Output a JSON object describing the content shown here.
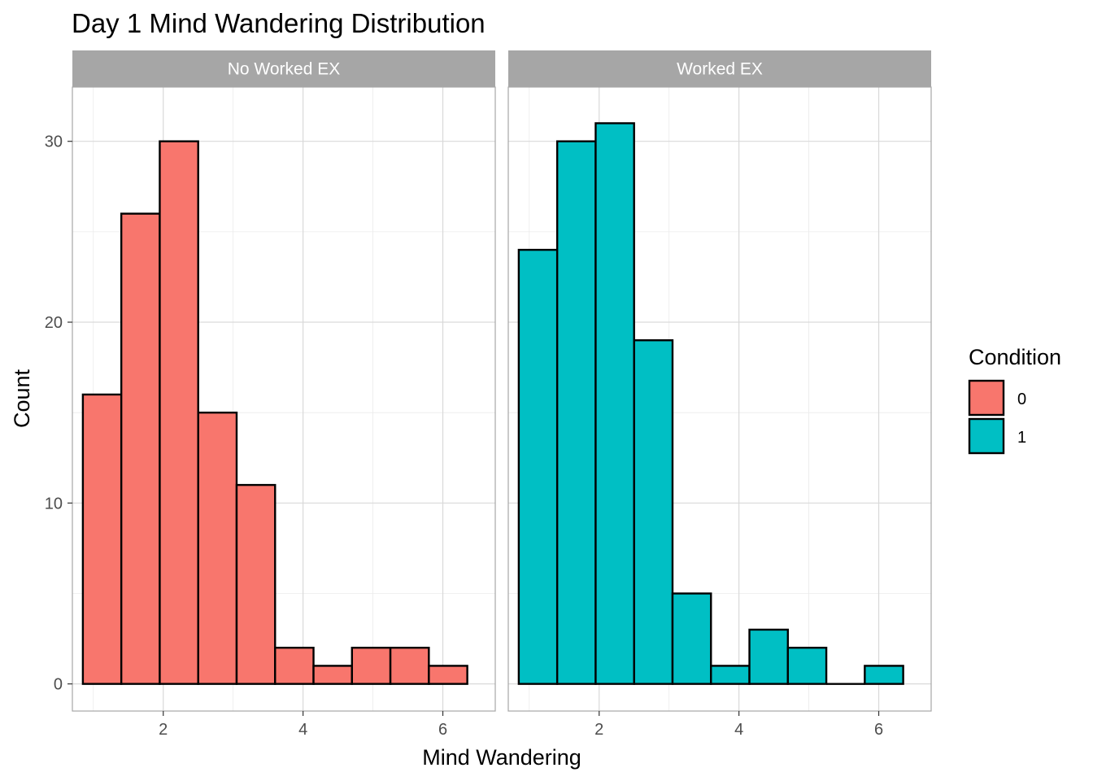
{
  "chart_data": {
    "type": "bar",
    "title": "Day 1 Mind Wandering Distribution",
    "xlabel": "Mind Wandering",
    "ylabel": "Count",
    "xlim": [
      0.7,
      6.75
    ],
    "ylim": [
      -1.5,
      33
    ],
    "x_ticks": [
      2,
      4,
      6
    ],
    "y_ticks": [
      0,
      10,
      20,
      30
    ],
    "grid": true,
    "bin_edges": [
      0.85,
      1.4,
      1.95,
      2.5,
      3.05,
      3.6,
      4.15,
      4.7,
      5.25,
      5.8,
      6.35
    ],
    "legend": {
      "title": "Condition",
      "position": "right",
      "entries": [
        {
          "label": "0",
          "color": "#F8766D"
        },
        {
          "label": "1",
          "color": "#00BFC4"
        }
      ]
    },
    "panels": [
      {
        "strip": "No Worked EX",
        "condition": "0",
        "color": "#F8766D",
        "counts": [
          16,
          26,
          30,
          15,
          11,
          2,
          1,
          2,
          2,
          1
        ]
      },
      {
        "strip": "Worked EX",
        "condition": "1",
        "color": "#00BFC4",
        "counts": [
          24,
          30,
          31,
          19,
          5,
          1,
          3,
          2,
          0,
          1
        ]
      }
    ]
  }
}
